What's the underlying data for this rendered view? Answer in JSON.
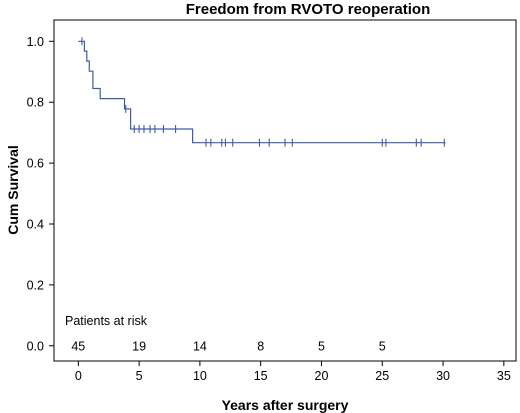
{
  "chart_data": {
    "type": "line",
    "title": "Freedom from RVOTO reoperation",
    "xlabel": "Years after surgery",
    "ylabel": "Cum Survival",
    "xlim": [
      -2,
      36
    ],
    "ylim": [
      -0.05,
      1.07
    ],
    "x_ticks": [
      0,
      5,
      10,
      15,
      20,
      25,
      30,
      35
    ],
    "y_ticks": [
      0.0,
      0.2,
      0.4,
      0.6,
      0.8,
      1.0
    ],
    "y_tick_labels": [
      "0.0",
      "0.2",
      "0.4",
      "0.6",
      "0.8",
      "1.0"
    ],
    "grid": false,
    "line_color": "#3b5ea8",
    "series": [
      {
        "step_x": [
          0,
          0.5,
          0.5,
          0.7,
          0.7,
          0.9,
          0.9,
          1.2,
          1.2,
          1.8,
          1.8,
          3.8,
          3.8,
          4.3,
          4.3,
          9.4,
          9.4,
          30.2
        ],
        "step_y": [
          1.0,
          1.0,
          0.968,
          0.968,
          0.935,
          0.935,
          0.902,
          0.902,
          0.845,
          0.845,
          0.812,
          0.812,
          0.778,
          0.778,
          0.712,
          0.712,
          0.667,
          0.667
        ],
        "censor_x": [
          0.3,
          3.9,
          4.6,
          5.0,
          5.4,
          5.9,
          6.3,
          7.0,
          8.0,
          10.5,
          10.9,
          11.8,
          12.1,
          12.7,
          14.9,
          15.7,
          17.0,
          17.6,
          25.0,
          25.3,
          27.8,
          28.2,
          30.1
        ],
        "censor_y": [
          1.0,
          0.778,
          0.712,
          0.712,
          0.712,
          0.712,
          0.712,
          0.712,
          0.712,
          0.667,
          0.667,
          0.667,
          0.667,
          0.667,
          0.667,
          0.667,
          0.667,
          0.667,
          0.667,
          0.667,
          0.667,
          0.667,
          0.667
        ]
      }
    ],
    "risk_table": {
      "label": "Patients at risk",
      "x": [
        0,
        5,
        10,
        15,
        20,
        25
      ],
      "counts": [
        "45",
        "19",
        "14",
        "8",
        "5",
        "5"
      ]
    }
  }
}
